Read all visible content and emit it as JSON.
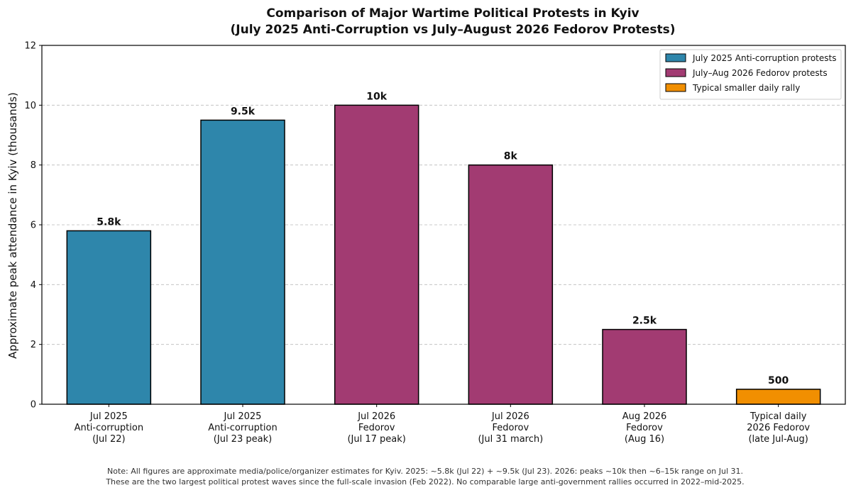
{
  "chart_data": {
    "type": "bar",
    "title_lines": [
      "Comparison of Major Wartime Political Protests in Kyiv",
      "(July 2025 Anti-Corruption vs July–August 2026 Fedorov Protests)"
    ],
    "ylabel": "Approximate peak attendance in Kyiv (thousands)",
    "ylim": [
      0,
      12
    ],
    "yticks": [
      "0",
      "2",
      "4",
      "6",
      "8",
      "10",
      "12"
    ],
    "grid": "y-dashed",
    "legend_position": "top-right",
    "legend": [
      {
        "label": "July 2025 Anti-corruption protests",
        "color": "#2E86AB"
      },
      {
        "label": "July–Aug 2026 Fedorov protests",
        "color": "#A23B72"
      },
      {
        "label": "Typical smaller daily rally",
        "color": "#F18F01"
      }
    ],
    "bars": [
      {
        "category_lines": [
          "Jul 2025",
          "Anti-corruption",
          "(Jul 22)"
        ],
        "value": 5.8,
        "label": "5.8k",
        "color": "#2E86AB"
      },
      {
        "category_lines": [
          "Jul 2025",
          "Anti-corruption",
          "(Jul 23 peak)"
        ],
        "value": 9.5,
        "label": "9.5k",
        "color": "#2E86AB"
      },
      {
        "category_lines": [
          "Jul 2026",
          "Fedorov",
          "(Jul 17 peak)"
        ],
        "value": 10,
        "label": "10k",
        "color": "#A23B72"
      },
      {
        "category_lines": [
          "Jul 2026",
          "Fedorov",
          "(Jul 31 march)"
        ],
        "value": 8,
        "label": "8k",
        "color": "#A23B72"
      },
      {
        "category_lines": [
          "Aug 2026",
          "Fedorov",
          "(Aug 16)"
        ],
        "value": 2.5,
        "label": "2.5k",
        "color": "#A23B72"
      },
      {
        "category_lines": [
          "Typical daily",
          "2026 Fedorov",
          "(late Jul-Aug)"
        ],
        "value": 0.5,
        "label": "500",
        "color": "#F18F01"
      }
    ],
    "note_lines": [
      "Note: All figures are approximate media/police/organizer estimates for Kyiv. 2025: ~5.8k (Jul 22) + ~9.5k (Jul 23). 2026: peaks ~10k then ~6–15k range on Jul 31.",
      "These are the two largest political protest waves since the full-scale invasion (Feb 2022). No comparable large anti-government rallies occurred in 2022–mid-2025."
    ]
  }
}
